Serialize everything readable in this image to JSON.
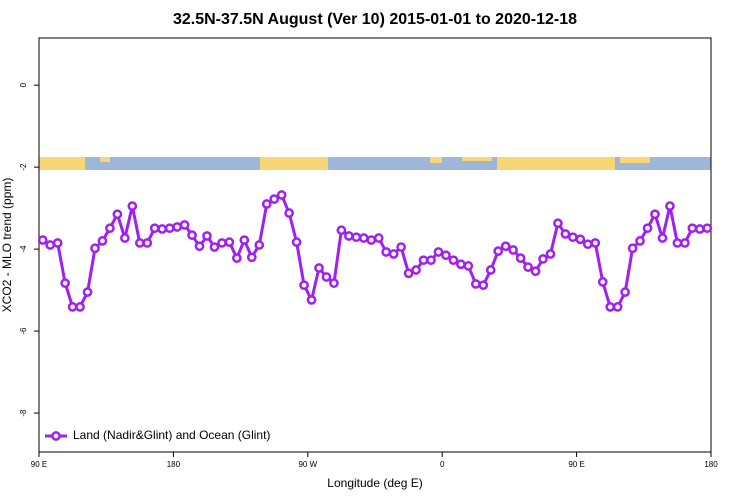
{
  "chart_data": {
    "type": "line",
    "title": "32.5N-37.5N August (Ver 10)   2015-01-01 to 2020-12-18",
    "x_label": "Longitude (deg E)",
    "y_label": "XCO2 - MLO trend (ppm)",
    "xlim": [
      90,
      540
    ],
    "ylim": [
      -8.95,
      1.15
    ],
    "xticks": [
      {
        "value": 90,
        "label": "90 E"
      },
      180,
      {
        "value": 270,
        "label": "90 W"
      },
      {
        "value": 360,
        "label": "0"
      },
      {
        "value": 450,
        "label": "90 E"
      },
      {
        "value": 540,
        "label": "180"
      }
    ],
    "yticks": [
      -8,
      -6,
      -4,
      -2,
      0
    ],
    "legend": "bottom-left",
    "x": [
      92.5,
      97.5,
      102.5,
      107.5,
      112.5,
      117.5,
      122.5,
      127.5,
      132.5,
      137.5,
      142.5,
      147.5,
      152.5,
      157.5,
      162.5,
      167.5,
      172.5,
      177.5,
      182.5,
      187.5,
      192.5,
      197.5,
      202.5,
      207.5,
      212.5,
      217.5,
      222.5,
      227.5,
      232.5,
      237.5,
      242.5,
      247.5,
      252.5,
      257.5,
      262.5,
      267.5,
      272.5,
      277.5,
      282.5,
      287.5,
      292.5,
      297.5,
      302.5,
      307.5,
      312.5,
      317.5,
      322.5,
      327.5,
      332.5,
      337.5,
      342.5,
      347.5,
      352.5,
      357.5,
      362.5,
      367.5,
      372.5,
      377.5,
      382.5,
      387.5,
      392.5,
      397.5,
      402.5,
      407.5,
      412.5,
      417.5,
      422.5,
      427.5,
      432.5,
      437.5,
      442.5,
      447.5,
      452.5,
      457.5,
      462.5,
      467.5,
      472.5,
      477.5,
      482.5,
      487.5,
      492.5,
      497.5,
      502.5,
      507.5,
      512.5,
      517.5,
      522.5,
      527.5,
      532.5,
      537.5
    ],
    "series": [
      {
        "name": "Land (Nadir&Glint) and Ocean (Glint)",
        "color": "#a020f0",
        "values": [
          -3.78,
          -3.9,
          -3.85,
          -4.83,
          -5.41,
          -5.41,
          -5.05,
          -3.98,
          -3.8,
          -3.49,
          -3.15,
          -3.73,
          -2.95,
          -3.85,
          -3.85,
          -3.49,
          -3.51,
          -3.49,
          -3.46,
          -3.41,
          -3.66,
          -3.93,
          -3.68,
          -3.95,
          -3.85,
          -3.83,
          -4.22,
          -3.78,
          -4.2,
          -3.9,
          -2.9,
          -2.78,
          -2.68,
          -3.12,
          -3.83,
          -4.88,
          -5.24,
          -4.46,
          -4.68,
          -4.83,
          -3.54,
          -3.68,
          -3.71,
          -3.73,
          -3.78,
          -3.73,
          -4.07,
          -4.12,
          -3.95,
          -4.59,
          -4.51,
          -4.27,
          -4.27,
          -4.07,
          -4.15,
          -4.27,
          -4.37,
          -4.41,
          -4.85,
          -4.88,
          -4.51,
          -4.05,
          -3.93,
          -4.02,
          -4.22,
          -4.44,
          -4.54,
          -4.24,
          -4.12,
          -3.37,
          -3.63,
          -3.71,
          -3.76,
          -3.88,
          -3.85,
          -4.8,
          -5.41,
          -5.41,
          -5.05,
          -3.98,
          -3.8,
          -3.49,
          -3.15,
          -3.73,
          -2.95,
          -3.85,
          -3.85,
          -3.49,
          -3.51,
          -3.49
        ]
      }
    ]
  }
}
